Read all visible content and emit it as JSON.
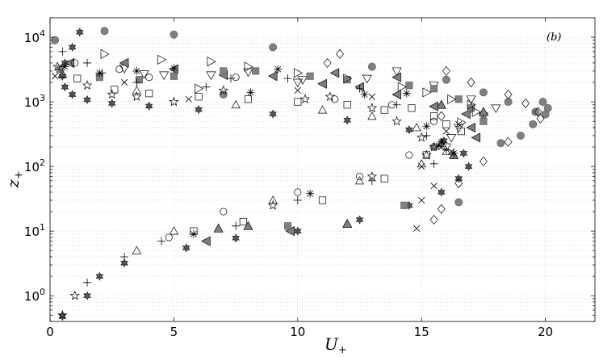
{
  "chart_data": {
    "type": "scatter",
    "title": "",
    "panel_label": "(b)",
    "xlabel": "U",
    "xlabel_sub": "+",
    "ylabel": "z",
    "ylabel_sub": "+",
    "xlim": [
      0,
      22
    ],
    "ylim": [
      0.4,
      20000
    ],
    "yscale": "log",
    "grid": "both-dotted",
    "x_ticks": [
      0,
      5,
      10,
      15,
      20
    ],
    "x_tick_labels": [
      "0",
      "5",
      "10",
      "15",
      "20"
    ],
    "y_ticks": [
      1,
      10,
      100,
      1000,
      10000
    ],
    "y_tick_base": "10",
    "y_tick_exponents": [
      "0",
      "1",
      "2",
      "3",
      "4"
    ],
    "colors": {
      "gray_fill": "#808080",
      "dark_fill": "#555555",
      "stroke": "#000000",
      "grid": "#c8c8c8"
    },
    "series": [
      {
        "marker": "hexagram",
        "fill": "#555555",
        "points": [
          [
            0.5,
            0.48
          ],
          [
            1.5,
            1.0
          ],
          [
            2,
            2
          ],
          [
            3,
            3.2
          ],
          [
            5.5,
            5.5
          ],
          [
            7.5,
            7.8
          ],
          [
            10,
            10
          ],
          [
            12.5,
            15
          ],
          [
            14.5,
            25
          ],
          [
            15.8,
            40
          ],
          [
            16.5,
            65
          ],
          [
            16.9,
            100
          ],
          [
            16.7,
            160
          ],
          [
            15.9,
            250
          ],
          [
            14.5,
            370
          ],
          [
            12,
            520
          ],
          [
            9,
            650
          ],
          [
            6,
            760
          ],
          [
            4,
            860
          ],
          [
            2.5,
            950
          ],
          [
            1.5,
            1080
          ],
          [
            0.9,
            1300
          ],
          [
            0.6,
            1700
          ],
          [
            0.5,
            2500
          ],
          [
            0.6,
            4000
          ],
          [
            0.9,
            7000
          ],
          [
            1.2,
            12000
          ]
        ]
      },
      {
        "marker": "circle-filled",
        "fill": "#808080",
        "points": [
          [
            0.2,
            9000
          ],
          [
            2.2,
            12500
          ],
          [
            5,
            11000
          ],
          [
            9,
            7000
          ],
          [
            13,
            3500
          ],
          [
            16,
            2200
          ],
          [
            17.5,
            1400
          ],
          [
            18.5,
            1000
          ],
          [
            19.6,
            700
          ],
          [
            20,
            640
          ],
          [
            20.1,
            800
          ],
          [
            19.9,
            1000
          ],
          [
            19.5,
            450
          ],
          [
            19,
            300
          ],
          [
            18.2,
            230
          ],
          [
            16.5,
            28
          ],
          [
            15.5,
            200
          ],
          [
            7,
            1300
          ]
        ]
      },
      {
        "marker": "diamond",
        "fill": "none",
        "points": [
          [
            11.7,
            5500
          ],
          [
            16,
            3000
          ],
          [
            17,
            2000
          ],
          [
            18.5,
            1300
          ],
          [
            19.2,
            950
          ],
          [
            19.7,
            700
          ],
          [
            19.8,
            550
          ],
          [
            18.5,
            240
          ],
          [
            17.5,
            120
          ],
          [
            16.5,
            55
          ],
          [
            15.8,
            22
          ],
          [
            15.5,
            15
          ],
          [
            15.8,
            600
          ],
          [
            17,
            800
          ],
          [
            11.2,
            4000
          ]
        ]
      },
      {
        "marker": "cross",
        "fill": "none",
        "points": [
          [
            0.2,
            2500
          ],
          [
            15,
            100
          ],
          [
            15.5,
            50
          ],
          [
            15,
            30
          ],
          [
            14.8,
            11
          ],
          [
            15.8,
            200
          ],
          [
            16,
            350
          ],
          [
            16.5,
            450
          ],
          [
            17.5,
            600
          ],
          [
            10,
            1500
          ],
          [
            13,
            1200
          ],
          [
            3,
            2000
          ],
          [
            5.6,
            1100
          ],
          [
            16.2,
            170
          ]
        ]
      },
      {
        "marker": "triangle-down",
        "fill": "none",
        "points": [
          [
            3,
            3300
          ],
          [
            4.6,
            2600
          ],
          [
            6.5,
            2600
          ],
          [
            10,
            2000
          ],
          [
            12.8,
            2300
          ],
          [
            14,
            3000
          ],
          [
            15.5,
            1800
          ],
          [
            17,
            1100
          ],
          [
            18,
            800
          ],
          [
            17.5,
            600
          ],
          [
            16.5,
            400
          ],
          [
            16.2,
            280
          ],
          [
            16,
            200
          ],
          [
            3.8,
            2700
          ],
          [
            8,
            2900
          ],
          [
            10.2,
            2200
          ]
        ]
      },
      {
        "marker": "triangle-filled",
        "fill": "#808080",
        "points": [
          [
            6.8,
            11
          ],
          [
            8,
            12
          ],
          [
            12,
            13
          ],
          [
            16.3,
            150
          ],
          [
            17.5,
            700
          ],
          [
            15.8,
            900
          ]
        ]
      },
      {
        "marker": "triangle-left-filled",
        "fill": "#808080",
        "points": [
          [
            0.8,
            4000
          ],
          [
            3,
            4000
          ],
          [
            5,
            3200
          ],
          [
            7,
            2600
          ],
          [
            9,
            2500
          ],
          [
            11,
            1900
          ],
          [
            12.5,
            1700
          ],
          [
            14,
            1300
          ],
          [
            15.5,
            850
          ],
          [
            16.8,
            650
          ],
          [
            17,
            400
          ],
          [
            17.2,
            280
          ],
          [
            14,
            2400
          ],
          [
            11.5,
            2800
          ],
          [
            9.7,
            10
          ],
          [
            6.3,
            7
          ]
        ]
      },
      {
        "marker": "square-filled",
        "fill": "#808080",
        "points": [
          [
            0.4,
            3200
          ],
          [
            2,
            2400
          ],
          [
            3.6,
            2200
          ],
          [
            5,
            2500
          ],
          [
            7,
            3000
          ],
          [
            8.3,
            3000
          ],
          [
            10.5,
            2500
          ],
          [
            12,
            2200
          ],
          [
            14.5,
            1800
          ],
          [
            15.5,
            1600
          ],
          [
            16.5,
            1100
          ],
          [
            17,
            800
          ],
          [
            17.5,
            500
          ],
          [
            9.6,
            12
          ],
          [
            14.3,
            25
          ]
        ]
      },
      {
        "marker": "square-open",
        "fill": "none",
        "points": [
          [
            1.1,
            2300
          ],
          [
            2.6,
            1550
          ],
          [
            4,
            1350
          ],
          [
            6,
            1200
          ],
          [
            8,
            1100
          ],
          [
            10,
            1000
          ],
          [
            12,
            900
          ],
          [
            13.5,
            750
          ],
          [
            14.6,
            800
          ],
          [
            15.5,
            600
          ],
          [
            16,
            450
          ],
          [
            16.6,
            350
          ],
          [
            15.2,
            150
          ],
          [
            13.5,
            65
          ],
          [
            11,
            30
          ],
          [
            7.8,
            14
          ],
          [
            5.8,
            10
          ]
        ]
      },
      {
        "marker": "circle-open",
        "fill": "none",
        "points": [
          [
            1,
            4000
          ],
          [
            2.8,
            3200
          ],
          [
            4,
            2400
          ],
          [
            7.5,
            2400
          ],
          [
            11.5,
            1100
          ],
          [
            13.8,
            900
          ],
          [
            15.5,
            500
          ],
          [
            14.5,
            150
          ],
          [
            12.5,
            70
          ],
          [
            10,
            40
          ],
          [
            7,
            20
          ],
          [
            4.8,
            8
          ]
        ]
      },
      {
        "marker": "star",
        "fill": "none",
        "points": [
          [
            0.3,
            3500
          ],
          [
            1.5,
            1800
          ],
          [
            2.5,
            1300
          ],
          [
            3.5,
            1200
          ],
          [
            5,
            1000
          ],
          [
            7,
            1500
          ],
          [
            10.3,
            1100
          ],
          [
            11.3,
            1200
          ],
          [
            13,
            800
          ],
          [
            14,
            500
          ],
          [
            15,
            280
          ],
          [
            15.5,
            200
          ],
          [
            15.2,
            150
          ],
          [
            13,
            70
          ],
          [
            9,
            25
          ],
          [
            1,
            1
          ],
          [
            0.5,
            0.5
          ]
        ]
      },
      {
        "marker": "asterisk",
        "fill": "none",
        "points": [
          [
            0.6,
            3500
          ],
          [
            2,
            2800
          ],
          [
            3.5,
            3000
          ],
          [
            5,
            3300
          ],
          [
            9.2,
            3200
          ],
          [
            12.7,
            1300
          ],
          [
            14.4,
            1350
          ],
          [
            15.2,
            420
          ],
          [
            15.8,
            240
          ],
          [
            16.3,
            160
          ],
          [
            15.7,
            210
          ],
          [
            8.1,
            1400
          ],
          [
            10.5,
            38
          ],
          [
            5.8,
            9
          ]
        ]
      },
      {
        "marker": "plus",
        "fill": "none",
        "points": [
          [
            0.5,
            6000
          ],
          [
            1.5,
            4000
          ],
          [
            2.1,
            2800
          ],
          [
            3.5,
            2000
          ],
          [
            6.3,
            1700
          ],
          [
            7.3,
            2300
          ],
          [
            9.6,
            2300
          ],
          [
            12.5,
            1600
          ],
          [
            14,
            900
          ],
          [
            15.2,
            300
          ],
          [
            16,
            180
          ],
          [
            15.5,
            110
          ],
          [
            13,
            60
          ],
          [
            10,
            30
          ],
          [
            7.5,
            12
          ],
          [
            4.5,
            7
          ],
          [
            3,
            4
          ],
          [
            1.5,
            1.6
          ]
        ]
      },
      {
        "marker": "triangle-right",
        "fill": "none",
        "points": [
          [
            2.2,
            5500
          ],
          [
            4.5,
            4500
          ],
          [
            6.5,
            4200
          ],
          [
            8,
            3500
          ],
          [
            10,
            2800
          ],
          [
            12,
            2300
          ],
          [
            14.2,
            1700
          ],
          [
            15.2,
            1400
          ],
          [
            16.2,
            1100
          ],
          [
            17,
            900
          ],
          [
            17.2,
            700
          ],
          [
            16.6,
            480
          ],
          [
            6,
            1600
          ]
        ]
      },
      {
        "marker": "triangle-up",
        "fill": "none",
        "points": [
          [
            0.5,
            2700
          ],
          [
            3.5,
            1500
          ],
          [
            7.5,
            900
          ],
          [
            11,
            750
          ],
          [
            13,
            600
          ],
          [
            14.8,
            400
          ],
          [
            15.8,
            230
          ],
          [
            16,
            170
          ],
          [
            15,
            110
          ],
          [
            12.5,
            60
          ],
          [
            9,
            30
          ],
          [
            5,
            10
          ],
          [
            3.5,
            5
          ]
        ]
      }
    ]
  }
}
